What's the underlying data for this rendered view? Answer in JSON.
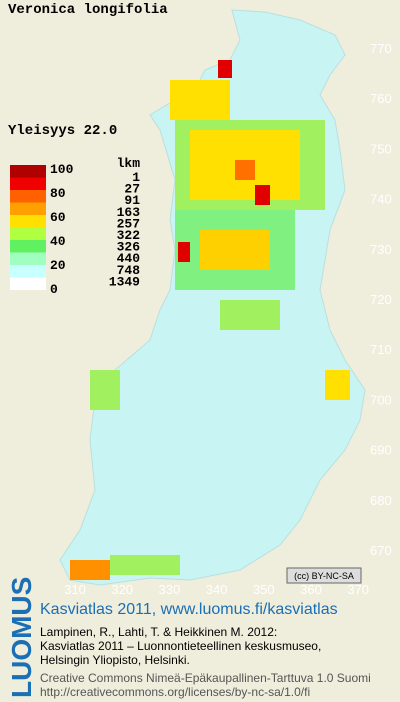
{
  "title": "Veronica longifolia",
  "frequency_label": "Yleisyys  22.0",
  "legend": {
    "scale_labels": [
      "100",
      "80",
      "60",
      "40",
      "20",
      "0"
    ],
    "count_header": "lkm",
    "counts": [
      "1",
      "27",
      "91",
      "163",
      "257",
      "322",
      "326",
      "440",
      "748",
      "1349"
    ]
  },
  "grid": {
    "north": [
      "770",
      "760",
      "750",
      "740",
      "730",
      "720",
      "710",
      "700",
      "690",
      "680",
      "670"
    ],
    "east": [
      "310",
      "320",
      "330",
      "340",
      "350",
      "360",
      "370"
    ]
  },
  "license_badge": "(cc) BY-NC-SA",
  "footer": {
    "brand": "LUOMUS",
    "heading": "Kasviatlas 2011, www.luomus.fi/kasviatlas",
    "citation": [
      "Lampinen, R., Lahti, T. & Heikkinen M. 2012:",
      "Kasviatlas 2011 – Luonnontieteellinen keskusmuseo,",
      "Helsingin Yliopisto, Helsinki."
    ],
    "license": [
      "Creative Commons Nimeä-Epäkaupallinen-Tarttuva 1.0 Suomi",
      "http://creativecommons.org/licenses/by-nc-sa/1.0/fi"
    ]
  }
}
